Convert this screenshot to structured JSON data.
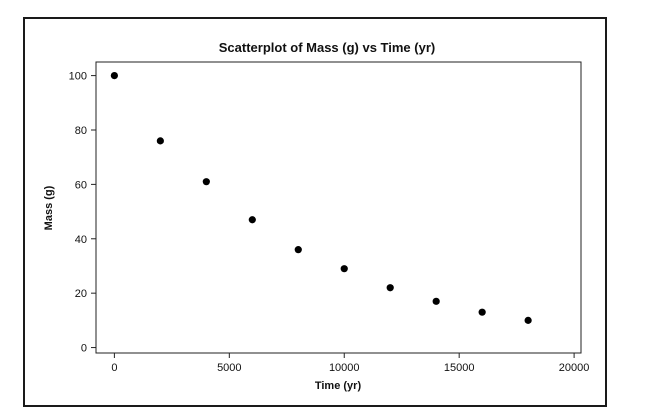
{
  "chart_data": {
    "type": "scatter",
    "title": "Scatterplot of Mass (g) vs Time (yr)",
    "xlabel": "Time (yr)",
    "ylabel": "Mass (g)",
    "xlim": [
      -800,
      20300
    ],
    "ylim": [
      -2,
      105
    ],
    "xticks": [
      0,
      5000,
      10000,
      15000,
      20000
    ],
    "yticks": [
      0,
      20,
      40,
      60,
      80,
      100
    ],
    "grid": false,
    "legend": "none",
    "marker_color": "#000000",
    "points": [
      {
        "x": 0,
        "y": 100
      },
      {
        "x": 2000,
        "y": 76
      },
      {
        "x": 4000,
        "y": 61
      },
      {
        "x": 6000,
        "y": 47
      },
      {
        "x": 8000,
        "y": 36
      },
      {
        "x": 10000,
        "y": 29
      },
      {
        "x": 12000,
        "y": 22
      },
      {
        "x": 14000,
        "y": 17
      },
      {
        "x": 16000,
        "y": 13
      },
      {
        "x": 18000,
        "y": 10
      }
    ]
  }
}
